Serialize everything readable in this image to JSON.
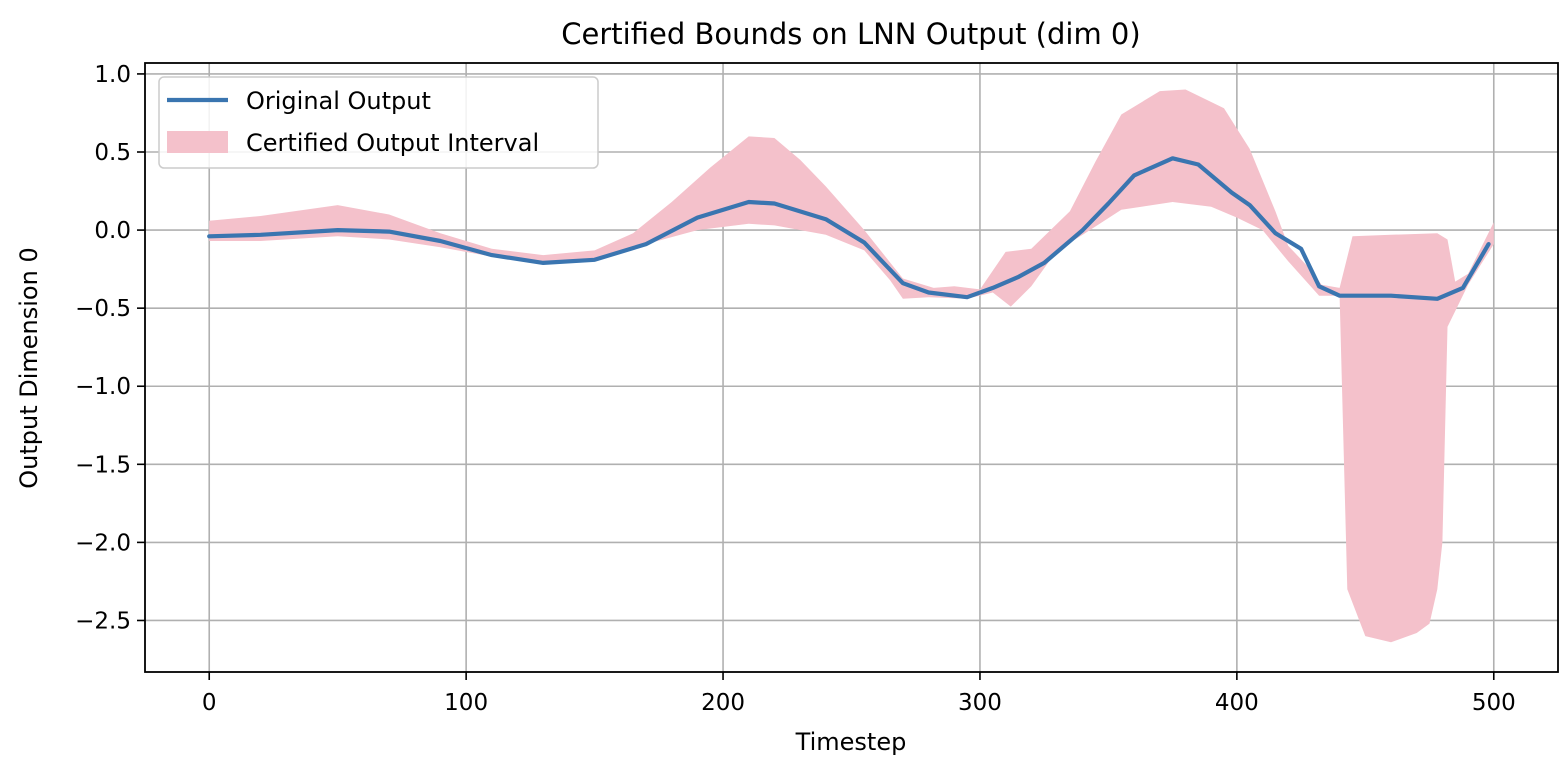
{
  "chart_data": {
    "type": "line",
    "title": "Certified Bounds on LNN Output (dim 0)",
    "xlabel": "Timestep",
    "ylabel": "Output Dimension 0",
    "xlim": [
      -25,
      525
    ],
    "ylim": [
      -2.83,
      1.07
    ],
    "xticks": [
      0,
      100,
      200,
      300,
      400,
      500
    ],
    "yticks": [
      1.0,
      0.5,
      0.0,
      -0.5,
      -1.0,
      -1.5,
      -2.0,
      -2.5
    ],
    "xtick_labels": [
      "0",
      "100",
      "200",
      "300",
      "400",
      "500"
    ],
    "ytick_labels": [
      "1.0",
      "0.5",
      "0.0",
      "−0.5",
      "−1.0",
      "−1.5",
      "−2.0",
      "−2.5"
    ],
    "grid": true,
    "legend_position": "upper-left",
    "series": [
      {
        "name": "Original Output",
        "kind": "line",
        "color": "#3a75b0",
        "points": [
          [
            0,
            -0.04
          ],
          [
            20,
            -0.03
          ],
          [
            50,
            0.0
          ],
          [
            70,
            -0.01
          ],
          [
            90,
            -0.07
          ],
          [
            110,
            -0.16
          ],
          [
            130,
            -0.21
          ],
          [
            150,
            -0.19
          ],
          [
            170,
            -0.09
          ],
          [
            190,
            0.08
          ],
          [
            210,
            0.18
          ],
          [
            220,
            0.17
          ],
          [
            240,
            0.07
          ],
          [
            255,
            -0.08
          ],
          [
            270,
            -0.34
          ],
          [
            280,
            -0.4
          ],
          [
            295,
            -0.43
          ],
          [
            305,
            -0.37
          ],
          [
            315,
            -0.3
          ],
          [
            325,
            -0.21
          ],
          [
            340,
            0.0
          ],
          [
            350,
            0.17
          ],
          [
            360,
            0.35
          ],
          [
            375,
            0.46
          ],
          [
            385,
            0.42
          ],
          [
            398,
            0.24
          ],
          [
            405,
            0.16
          ],
          [
            415,
            -0.02
          ],
          [
            425,
            -0.12
          ],
          [
            432,
            -0.36
          ],
          [
            440,
            -0.42
          ],
          [
            460,
            -0.42
          ],
          [
            478,
            -0.44
          ],
          [
            488,
            -0.37
          ],
          [
            498,
            -0.09
          ]
        ]
      },
      {
        "name": "Certified Output Interval",
        "kind": "band",
        "color": "#f4c1cb",
        "upper": [
          [
            0,
            0.06
          ],
          [
            20,
            0.09
          ],
          [
            50,
            0.16
          ],
          [
            70,
            0.1
          ],
          [
            90,
            -0.02
          ],
          [
            110,
            -0.12
          ],
          [
            130,
            -0.16
          ],
          [
            150,
            -0.13
          ],
          [
            165,
            -0.02
          ],
          [
            180,
            0.18
          ],
          [
            195,
            0.4
          ],
          [
            210,
            0.6
          ],
          [
            220,
            0.59
          ],
          [
            230,
            0.45
          ],
          [
            240,
            0.28
          ],
          [
            255,
            0.0
          ],
          [
            270,
            -0.31
          ],
          [
            282,
            -0.37
          ],
          [
            290,
            -0.36
          ],
          [
            300,
            -0.38
          ],
          [
            310,
            -0.14
          ],
          [
            320,
            -0.12
          ],
          [
            335,
            0.12
          ],
          [
            345,
            0.44
          ],
          [
            355,
            0.74
          ],
          [
            370,
            0.89
          ],
          [
            380,
            0.9
          ],
          [
            395,
            0.78
          ],
          [
            405,
            0.52
          ],
          [
            415,
            0.12
          ],
          [
            420,
            -0.1
          ],
          [
            428,
            -0.24
          ],
          [
            433,
            -0.35
          ],
          [
            440,
            -0.37
          ],
          [
            445,
            -0.04
          ],
          [
            460,
            -0.03
          ],
          [
            478,
            -0.02
          ],
          [
            482,
            -0.06
          ],
          [
            485,
            -0.33
          ],
          [
            490,
            -0.28
          ],
          [
            500,
            0.05
          ]
        ],
        "lower": [
          [
            0,
            -0.07
          ],
          [
            20,
            -0.07
          ],
          [
            50,
            -0.04
          ],
          [
            70,
            -0.06
          ],
          [
            90,
            -0.11
          ],
          [
            110,
            -0.17
          ],
          [
            130,
            -0.21
          ],
          [
            150,
            -0.18
          ],
          [
            170,
            -0.09
          ],
          [
            190,
            0.0
          ],
          [
            210,
            0.04
          ],
          [
            220,
            0.03
          ],
          [
            240,
            -0.03
          ],
          [
            255,
            -0.13
          ],
          [
            265,
            -0.32
          ],
          [
            270,
            -0.44
          ],
          [
            280,
            -0.43
          ],
          [
            295,
            -0.44
          ],
          [
            305,
            -0.4
          ],
          [
            312,
            -0.49
          ],
          [
            320,
            -0.36
          ],
          [
            330,
            -0.13
          ],
          [
            340,
            -0.03
          ],
          [
            355,
            0.13
          ],
          [
            375,
            0.18
          ],
          [
            390,
            0.15
          ],
          [
            400,
            0.08
          ],
          [
            410,
            0.0
          ],
          [
            420,
            -0.2
          ],
          [
            432,
            -0.42
          ],
          [
            440,
            -0.42
          ],
          [
            443,
            -2.3
          ],
          [
            450,
            -2.6
          ],
          [
            460,
            -2.64
          ],
          [
            470,
            -2.58
          ],
          [
            475,
            -2.52
          ],
          [
            478,
            -2.3
          ],
          [
            480,
            -2.0
          ],
          [
            482,
            -0.62
          ],
          [
            490,
            -0.35
          ],
          [
            500,
            -0.09
          ]
        ]
      }
    ]
  }
}
